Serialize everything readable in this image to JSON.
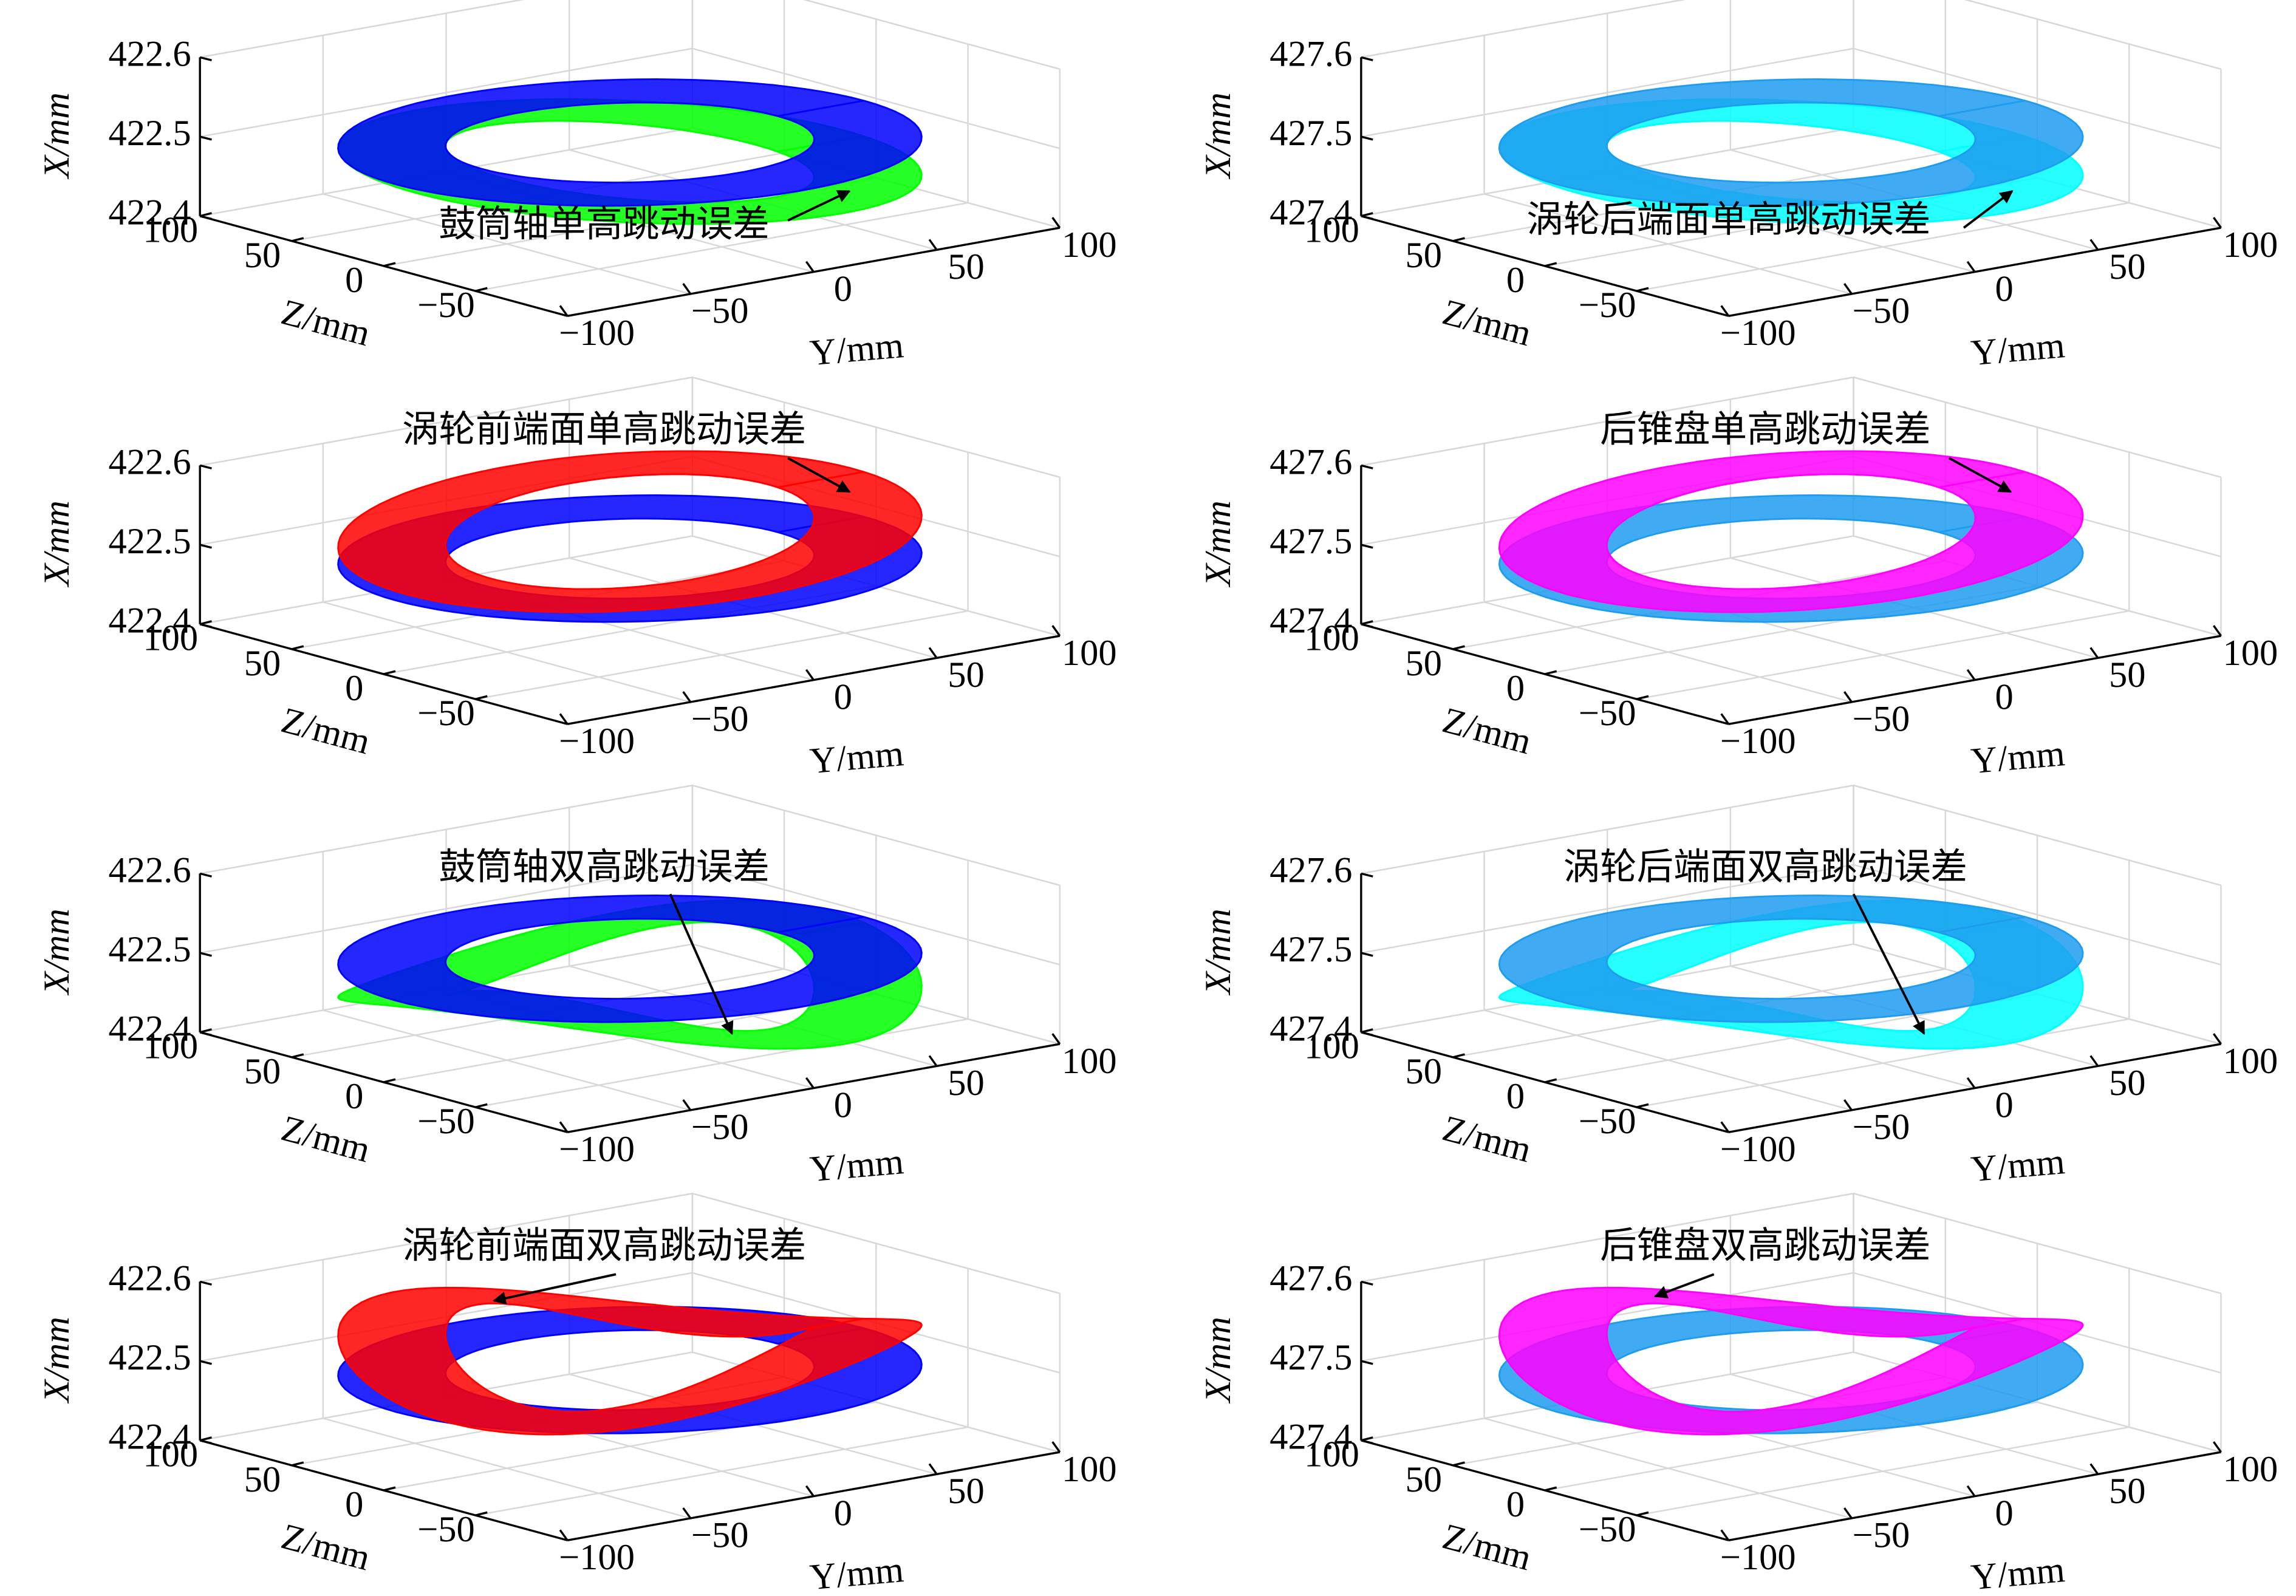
{
  "chart_data": [
    {
      "type": "surface3d",
      "annotation": "鼓筒轴单高跳动误差",
      "xlabel": "Y/mm",
      "ylabel": "Z/mm",
      "zlabel": "X/mm",
      "xlim": [
        -100,
        100
      ],
      "xticks": [
        {
          "value": -100,
          "label": "−100"
        },
        {
          "value": -50,
          "label": "−50"
        },
        0,
        50,
        100
      ],
      "ylim": [
        -100,
        100
      ],
      "yticks": [
        {
          "value": -50,
          "label": "−50"
        },
        0,
        50,
        100
      ],
      "zlim": [
        422.4,
        422.6
      ],
      "zticks": [
        422.4,
        422.5,
        422.6
      ],
      "colors": [
        "#0000ff",
        "#00ff00"
      ],
      "grid": true
    },
    {
      "type": "surface3d",
      "annotation": "涡轮后端面单高跳动误差",
      "xlabel": "Y/mm",
      "ylabel": "Z/mm",
      "zlabel": "X/mm",
      "xlim": [
        -100,
        100
      ],
      "xticks": [
        {
          "value": -100,
          "label": "−100"
        },
        {
          "value": -50,
          "label": "−50"
        },
        0,
        50,
        100
      ],
      "ylim": [
        -100,
        100
      ],
      "yticks": [
        {
          "value": -50,
          "label": "−50"
        },
        0,
        50,
        100
      ],
      "zlim": [
        427.4,
        427.6
      ],
      "zticks": [
        427.4,
        427.5,
        427.6
      ],
      "colors": [
        "#1e9cf0",
        "#00ffff"
      ],
      "grid": true
    },
    {
      "type": "surface3d",
      "annotation": "涡轮前端面单高跳动误差",
      "xlabel": "Y/mm",
      "ylabel": "Z/mm",
      "zlabel": "X/mm",
      "xlim": [
        -100,
        100
      ],
      "xticks": [
        {
          "value": -100,
          "label": "−100"
        },
        {
          "value": -50,
          "label": "−50"
        },
        0,
        50,
        100
      ],
      "ylim": [
        -100,
        100
      ],
      "yticks": [
        {
          "value": -50,
          "label": "−50"
        },
        0,
        50,
        100
      ],
      "zlim": [
        422.4,
        422.6
      ],
      "zticks": [
        422.4,
        422.5,
        422.6
      ],
      "colors": [
        "#0000ff",
        "#ff0000"
      ],
      "grid": true
    },
    {
      "type": "surface3d",
      "annotation": "后锥盘单高跳动误差",
      "xlabel": "Y/mm",
      "ylabel": "Z/mm",
      "zlabel": "X/mm",
      "xlim": [
        -100,
        100
      ],
      "xticks": [
        {
          "value": -100,
          "label": "−100"
        },
        {
          "value": -50,
          "label": "−50"
        },
        0,
        50,
        100
      ],
      "ylim": [
        -100,
        100
      ],
      "yticks": [
        {
          "value": -50,
          "label": "−50"
        },
        0,
        50,
        100
      ],
      "zlim": [
        427.4,
        427.6
      ],
      "zticks": [
        427.4,
        427.5,
        427.6
      ],
      "colors": [
        "#1e9cf0",
        "#ff00ff"
      ],
      "grid": true
    },
    {
      "type": "surface3d",
      "annotation": "鼓筒轴双高跳动误差",
      "xlabel": "Y/mm",
      "ylabel": "Z/mm",
      "zlabel": "X/mm",
      "xlim": [
        -100,
        100
      ],
      "xticks": [
        {
          "value": -100,
          "label": "−100"
        },
        {
          "value": -50,
          "label": "−50"
        },
        0,
        50,
        100
      ],
      "ylim": [
        -100,
        100
      ],
      "yticks": [
        {
          "value": -50,
          "label": "−50"
        },
        0,
        50,
        100
      ],
      "zlim": [
        422.4,
        422.6
      ],
      "zticks": [
        422.4,
        422.5,
        422.6
      ],
      "colors": [
        "#0000ff",
        "#00ff00"
      ],
      "grid": true
    },
    {
      "type": "surface3d",
      "annotation": "涡轮后端面双高跳动误差",
      "xlabel": "Y/mm",
      "ylabel": "Z/mm",
      "zlabel": "X/mm",
      "xlim": [
        -100,
        100
      ],
      "xticks": [
        {
          "value": -100,
          "label": "−100"
        },
        {
          "value": -50,
          "label": "−50"
        },
        0,
        50,
        100
      ],
      "ylim": [
        -100,
        100
      ],
      "yticks": [
        {
          "value": -50,
          "label": "−50"
        },
        0,
        50,
        100
      ],
      "zlim": [
        427.4,
        427.6
      ],
      "zticks": [
        427.4,
        427.5,
        427.6
      ],
      "colors": [
        "#1e9cf0",
        "#00ffff"
      ],
      "grid": true
    },
    {
      "type": "surface3d",
      "annotation": "涡轮前端面双高跳动误差",
      "xlabel": "Y/mm",
      "ylabel": "Z/mm",
      "zlabel": "X/mm",
      "xlim": [
        -100,
        100
      ],
      "xticks": [
        {
          "value": -100,
          "label": "−100"
        },
        {
          "value": -50,
          "label": "−50"
        },
        0,
        50,
        100
      ],
      "ylim": [
        -100,
        100
      ],
      "yticks": [
        {
          "value": -50,
          "label": "−50"
        },
        0,
        50,
        100
      ],
      "zlim": [
        422.4,
        422.6
      ],
      "zticks": [
        422.4,
        422.5,
        422.6
      ],
      "colors": [
        "#0000ff",
        "#ff0000"
      ],
      "grid": true
    },
    {
      "type": "surface3d",
      "annotation": "后锥盘双高跳动误差",
      "xlabel": "Y/mm",
      "ylabel": "Z/mm",
      "zlabel": "X/mm",
      "xlim": [
        -100,
        100
      ],
      "xticks": [
        {
          "value": -100,
          "label": "−100"
        },
        {
          "value": -50,
          "label": "−50"
        },
        0,
        50,
        100
      ],
      "ylim": [
        -100,
        100
      ],
      "yticks": [
        {
          "value": -50,
          "label": "−50"
        },
        0,
        50,
        100
      ],
      "zlim": [
        427.4,
        427.6
      ],
      "zticks": [
        427.4,
        427.5,
        427.6
      ],
      "colors": [
        "#1e9cf0",
        "#ff00ff"
      ],
      "grid": true
    }
  ]
}
